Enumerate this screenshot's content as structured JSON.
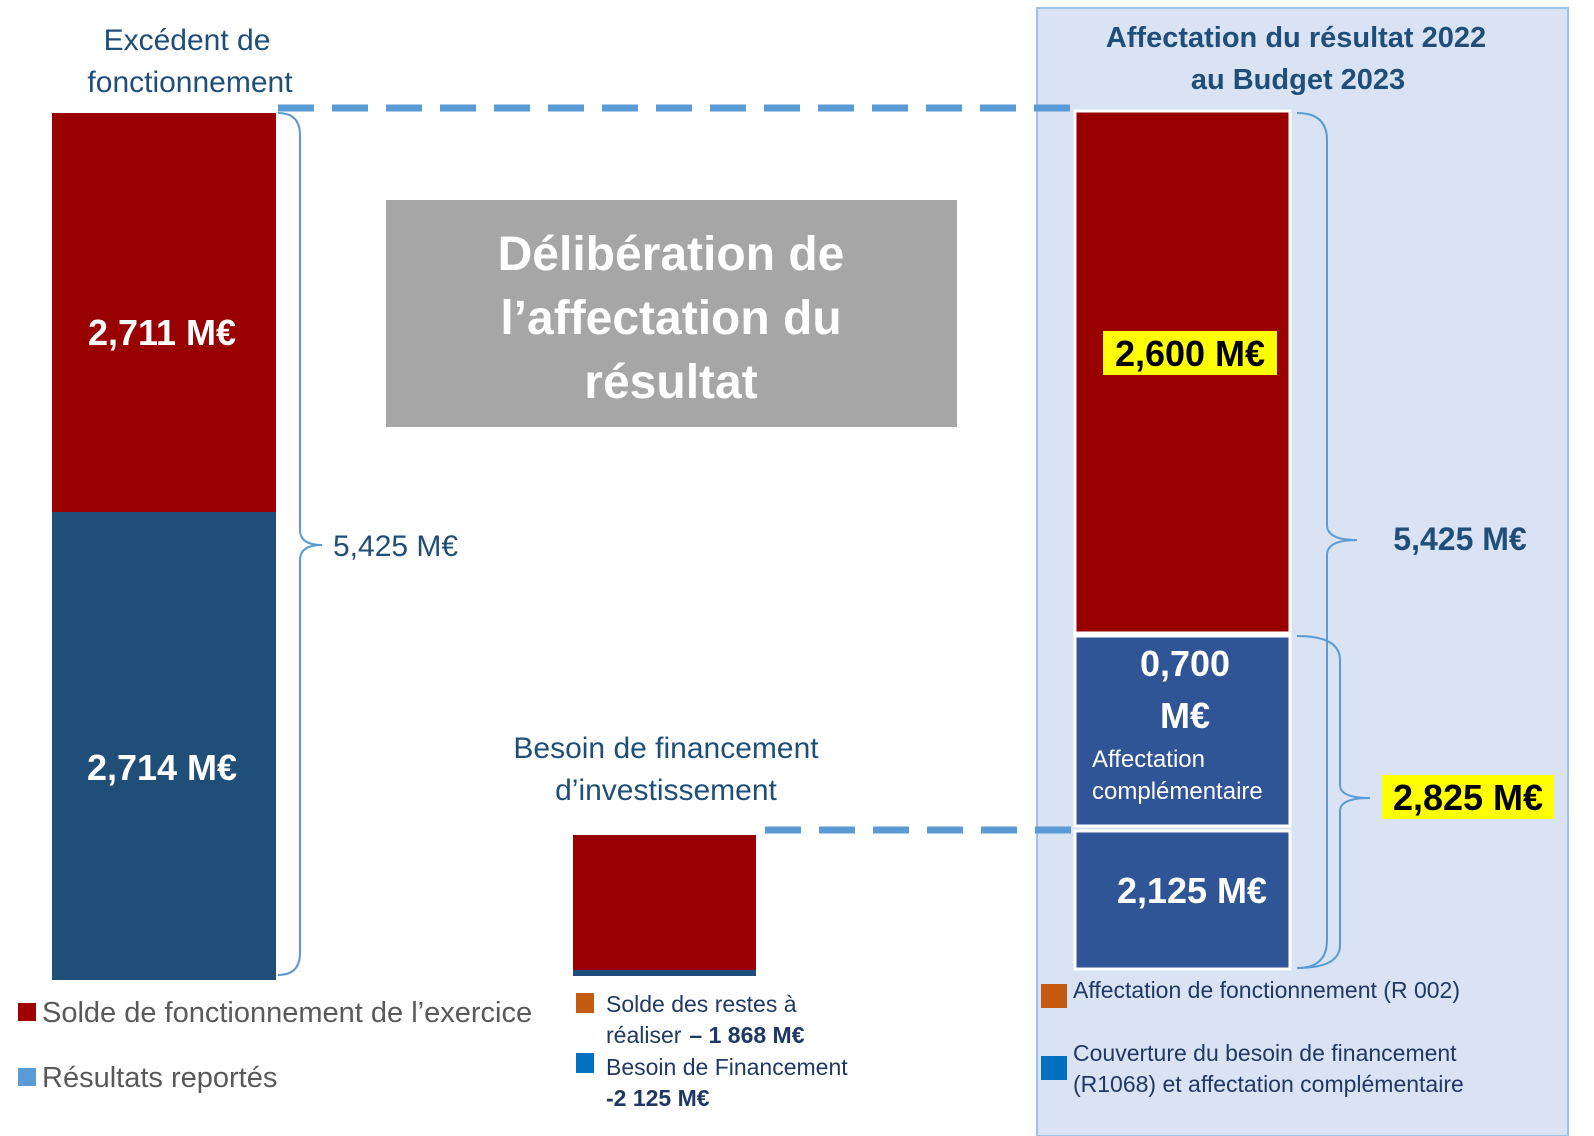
{
  "left": {
    "title": [
      "Excédent de",
      "fonctionnement"
    ],
    "bar": {
      "top": "2,711 M€",
      "bottom": "2,714 M€"
    },
    "total": "5,425 M€",
    "legend": [
      "Solde de fonctionnement de l’exercice",
      "Résultats reportés"
    ]
  },
  "center_box": [
    "Délibération de",
    "l’affectation du",
    "résultat"
  ],
  "middle": {
    "title": [
      "Besoin de financement",
      "d’investissement"
    ],
    "legend": [
      {
        "lines": [
          "Solde des restes à",
          "réaliser"
        ],
        "amount": "– 1 868 M€"
      },
      {
        "lines": [
          "Besoin de Financement"
        ],
        "amount": "-2 125 M€"
      }
    ]
  },
  "right": {
    "title": [
      "Affectation du résultat 2022",
      "au Budget 2023"
    ],
    "bar": {
      "top": "2,600 M€",
      "middle": [
        "0,700",
        "M€"
      ],
      "middle_note": [
        "Affectation",
        "complémentaire"
      ],
      "bottom": "2,125 M€"
    },
    "total": "5,425 M€",
    "subtotal": "2,825 M€",
    "legend": [
      [
        "Affectation de fonctionnement (R 002)"
      ],
      [
        "Couverture du besoin de financement",
        "(R1068) et affectation complémentaire"
      ]
    ]
  }
}
